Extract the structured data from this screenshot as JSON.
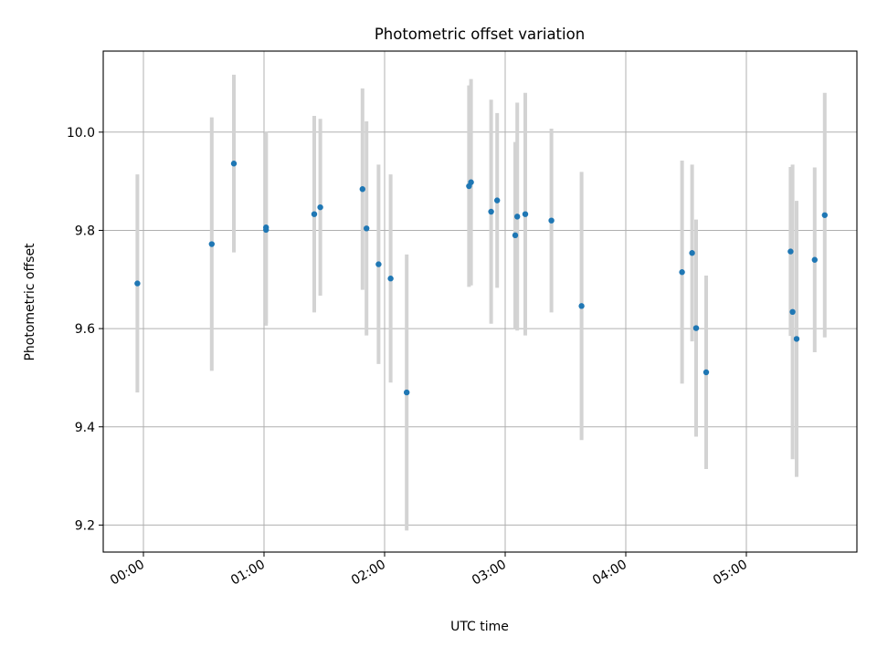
{
  "chart_data": {
    "type": "scatter",
    "title": "Photometric offset variation",
    "xlabel": "UTC time",
    "ylabel": "Photometric offset",
    "x_scale": "time (HH:MM)",
    "xlim": [
      "-00:20",
      "05:55"
    ],
    "ylim": [
      9.145,
      10.165
    ],
    "x_ticks": [
      "00:00",
      "01:00",
      "02:00",
      "03:00",
      "04:00",
      "05:00"
    ],
    "y_ticks": [
      "9.2",
      "9.4",
      "9.6",
      "9.8",
      "10.0"
    ],
    "grid": true,
    "colors": {
      "marker": "#1f77b4",
      "errorbar": "#d3d3d3",
      "grid": "#b0b0b0"
    },
    "points": [
      {
        "time": "-00:03",
        "y": 9.692,
        "err": 0.222
      },
      {
        "time": "00:34",
        "y": 9.772,
        "err": 0.258
      },
      {
        "time": "00:45",
        "y": 9.936,
        "err": 0.181
      },
      {
        "time": "01:01",
        "y": 9.806,
        "err": 0.195
      },
      {
        "time": "01:01",
        "y": 9.801,
        "err": 0.195
      },
      {
        "time": "01:25",
        "y": 9.833,
        "err": 0.2
      },
      {
        "time": "01:28",
        "y": 9.847,
        "err": 0.18
      },
      {
        "time": "01:49",
        "y": 9.884,
        "err": 0.205
      },
      {
        "time": "01:51",
        "y": 9.804,
        "err": 0.218
      },
      {
        "time": "01:57",
        "y": 9.731,
        "err": 0.203
      },
      {
        "time": "02:03",
        "y": 9.702,
        "err": 0.212
      },
      {
        "time": "02:11",
        "y": 9.47,
        "err": 0.281
      },
      {
        "time": "02:42",
        "y": 9.89,
        "err": 0.205
      },
      {
        "time": "02:43",
        "y": 9.898,
        "err": 0.21
      },
      {
        "time": "02:53",
        "y": 9.838,
        "err": 0.228
      },
      {
        "time": "02:56",
        "y": 9.861,
        "err": 0.178
      },
      {
        "time": "03:05",
        "y": 9.79,
        "err": 0.19
      },
      {
        "time": "03:06",
        "y": 9.828,
        "err": 0.232
      },
      {
        "time": "03:10",
        "y": 9.833,
        "err": 0.247
      },
      {
        "time": "03:23",
        "y": 9.82,
        "err": 0.187
      },
      {
        "time": "03:38",
        "y": 9.646,
        "err": 0.273
      },
      {
        "time": "04:28",
        "y": 9.715,
        "err": 0.227
      },
      {
        "time": "04:33",
        "y": 9.754,
        "err": 0.18
      },
      {
        "time": "04:35",
        "y": 9.601,
        "err": 0.221
      },
      {
        "time": "04:40",
        "y": 9.511,
        "err": 0.197
      },
      {
        "time": "05:22",
        "y": 9.757,
        "err": 0.172
      },
      {
        "time": "05:23",
        "y": 9.634,
        "err": 0.3
      },
      {
        "time": "05:25",
        "y": 9.579,
        "err": 0.281
      },
      {
        "time": "05:34",
        "y": 9.74,
        "err": 0.188
      },
      {
        "time": "05:39",
        "y": 9.831,
        "err": 0.249
      }
    ]
  }
}
